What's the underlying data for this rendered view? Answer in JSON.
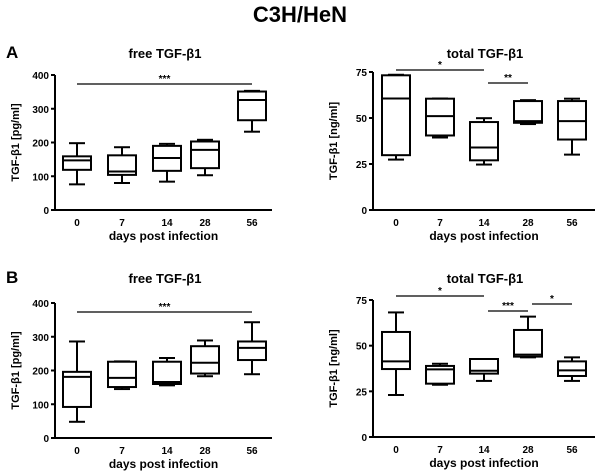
{
  "figure_title": "C3H/HeN",
  "chart_data": [
    {
      "panel": "A",
      "type": "box",
      "title": "free TGF-β1",
      "xlabel": "days post infection",
      "ylabel": "TGF-β1 [pg/ml]",
      "ylim": [
        0,
        400
      ],
      "yticks": [
        0,
        100,
        200,
        300,
        400
      ],
      "categories": [
        "0",
        "7",
        "14",
        "28",
        "56"
      ],
      "boxes": [
        {
          "min": 76,
          "q1": 119,
          "median": 147,
          "q3": 159,
          "max": 198
        },
        {
          "min": 80,
          "q1": 104,
          "median": 114,
          "q3": 162,
          "max": 186
        },
        {
          "min": 84,
          "q1": 116,
          "median": 154,
          "q3": 190,
          "max": 196
        },
        {
          "min": 103,
          "q1": 124,
          "median": 178,
          "q3": 203,
          "max": 208
        },
        {
          "min": 232,
          "q1": 266,
          "median": 326,
          "q3": 351,
          "max": 353
        }
      ],
      "significance": [
        {
          "from": "0",
          "to": "56",
          "label": "***"
        }
      ]
    },
    {
      "panel": "A",
      "type": "box",
      "title": "total TGF-β1",
      "xlabel": "days post infection",
      "ylabel": "TGF-β1 [ng/ml]",
      "ylim": [
        0,
        75
      ],
      "yticks": [
        0,
        25,
        50,
        75
      ],
      "categories": [
        "0",
        "7",
        "14",
        "28",
        "56"
      ],
      "boxes": [
        {
          "min": 27.4,
          "q1": 29.8,
          "median": 60.6,
          "q3": 73.2,
          "max": 73.5
        },
        {
          "min": 39.4,
          "q1": 40.5,
          "median": 51,
          "q3": 60.5,
          "max": 60.6
        },
        {
          "min": 24.7,
          "q1": 27,
          "median": 34,
          "q3": 47.8,
          "max": 49.9
        },
        {
          "min": 46.7,
          "q1": 47.4,
          "median": 48.3,
          "q3": 59.2,
          "max": 59.7
        },
        {
          "min": 30.1,
          "q1": 38.3,
          "median": 48.3,
          "q3": 59.2,
          "max": 60.5
        }
      ],
      "significance": [
        {
          "from": "0",
          "to": "14",
          "label": "*"
        },
        {
          "from": "14",
          "to": "28",
          "label": "**"
        }
      ]
    },
    {
      "panel": "B",
      "type": "box",
      "title": "free TGF-β1",
      "xlabel": "days post infection",
      "ylabel": "TGF-β1 [pg/ml]",
      "ylim": [
        0,
        400
      ],
      "yticks": [
        0,
        100,
        200,
        300,
        400
      ],
      "categories": [
        "0",
        "7",
        "14",
        "28",
        "56"
      ],
      "boxes": [
        {
          "min": 48,
          "q1": 92,
          "median": 181,
          "q3": 196,
          "max": 286
        },
        {
          "min": 145,
          "q1": 151,
          "median": 178,
          "q3": 226,
          "max": 227
        },
        {
          "min": 156,
          "q1": 160,
          "median": 166,
          "q3": 226,
          "max": 237
        },
        {
          "min": 183,
          "q1": 191,
          "median": 223,
          "q3": 272,
          "max": 289
        },
        {
          "min": 189,
          "q1": 231,
          "median": 267,
          "q3": 286,
          "max": 343
        }
      ],
      "significance": [
        {
          "from": "0",
          "to": "56",
          "label": "***"
        }
      ]
    },
    {
      "panel": "B",
      "type": "box",
      "title": "total TGF-β1",
      "xlabel": "days post infection",
      "ylabel": "TGF-β1 [ng/ml]",
      "ylim": [
        0,
        75
      ],
      "yticks": [
        0,
        25,
        50,
        75
      ],
      "categories": [
        "0",
        "7",
        "14",
        "28",
        "56"
      ],
      "boxes": [
        {
          "min": 23,
          "q1": 37.2,
          "median": 41.4,
          "q3": 57.5,
          "max": 68.2
        },
        {
          "min": 28.6,
          "q1": 29.2,
          "median": 37,
          "q3": 38.9,
          "max": 40.1
        },
        {
          "min": 30.7,
          "q1": 34.7,
          "median": 36.3,
          "q3": 42.7,
          "max": 42.7
        },
        {
          "min": 43.6,
          "q1": 44,
          "median": 45.1,
          "q3": 58.6,
          "max": 65.9
        },
        {
          "min": 30.7,
          "q1": 33.4,
          "median": 36.5,
          "q3": 41.4,
          "max": 43.6
        }
      ],
      "significance": [
        {
          "from": "0",
          "to": "14",
          "label": "*"
        },
        {
          "from": "14",
          "to": "28",
          "label": "***"
        },
        {
          "from": "28",
          "to": "56",
          "label": "*"
        }
      ]
    }
  ]
}
